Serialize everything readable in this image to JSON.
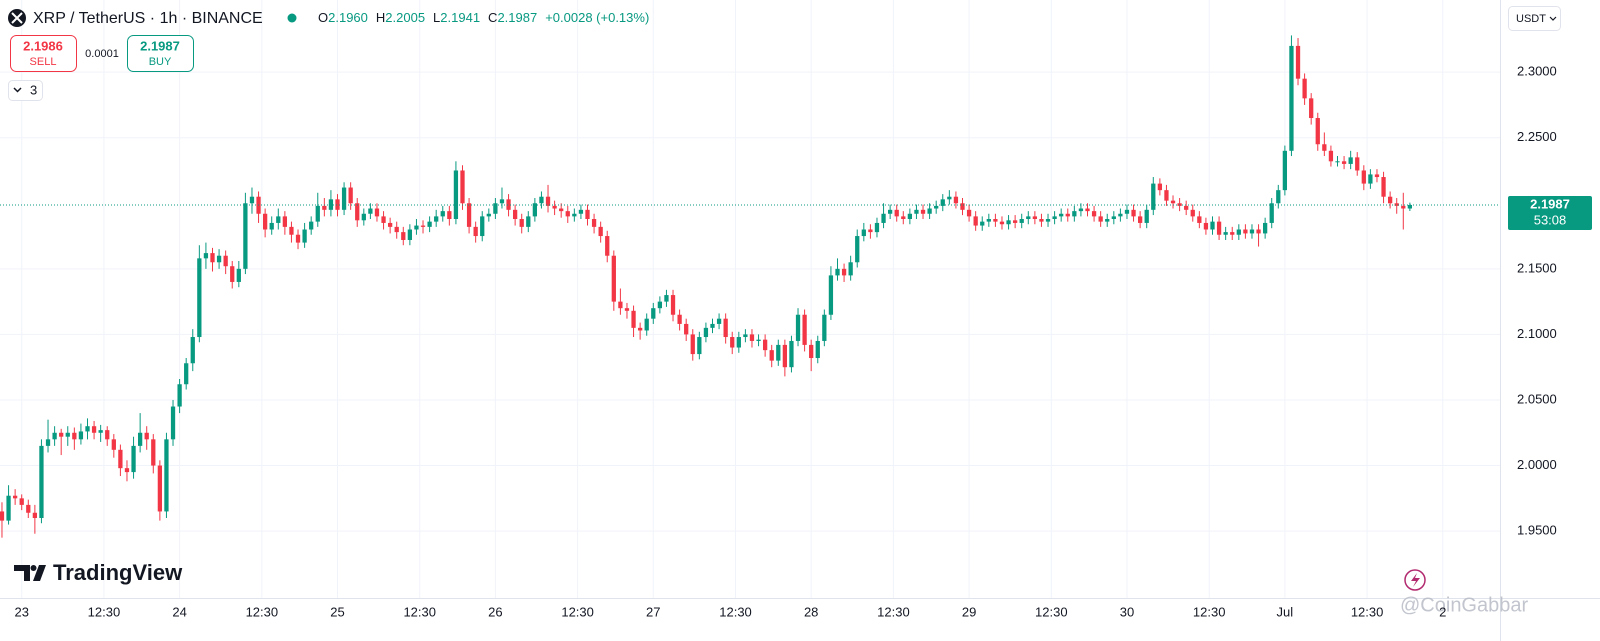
{
  "header": {
    "symbol": "XRP / TetherUS · 1h · BINANCE",
    "ohlc": [
      {
        "label": "O",
        "value": "2.1960"
      },
      {
        "label": "H",
        "value": "2.2005"
      },
      {
        "label": "L",
        "value": "2.1941"
      },
      {
        "label": "C",
        "value": "2.1987"
      }
    ],
    "change": "+0.0028 (+0.13%)"
  },
  "trade": {
    "sell_price": "2.1986",
    "sell": "SELL",
    "spread": "0.0001",
    "buy_price": "2.1987",
    "buy": "BUY"
  },
  "indicators_count": "3",
  "currency": "USDT",
  "watermark": "TradingView",
  "credit": "@CoinGabbar",
  "chart_data": {
    "type": "candlestick",
    "up_color": "#089981",
    "down_color": "#f23645",
    "grid": true,
    "ylim": [
      1.899,
      2.355
    ],
    "yticks": [
      {
        "value": 1.95,
        "label": "1.9500"
      },
      {
        "value": 2.0,
        "label": "2.0000"
      },
      {
        "value": 2.05,
        "label": "2.0500"
      },
      {
        "value": 2.1,
        "label": "2.1000"
      },
      {
        "value": 2.15,
        "label": "2.1500"
      },
      {
        "value": 2.25,
        "label": "2.2500"
      },
      {
        "value": 2.3,
        "label": "2.3000"
      }
    ],
    "xlim": [
      -0.3,
      227.7
    ],
    "xticks": [
      {
        "value": 3,
        "label": "23"
      },
      {
        "value": 15.5,
        "label": "12:30"
      },
      {
        "value": 27,
        "label": "24"
      },
      {
        "value": 39.5,
        "label": "12:30"
      },
      {
        "value": 51,
        "label": "25"
      },
      {
        "value": 63.5,
        "label": "12:30"
      },
      {
        "value": 75,
        "label": "26"
      },
      {
        "value": 87.5,
        "label": "12:30"
      },
      {
        "value": 99,
        "label": "27"
      },
      {
        "value": 111.5,
        "label": "12:30"
      },
      {
        "value": 123,
        "label": "28"
      },
      {
        "value": 135.5,
        "label": "12:30"
      },
      {
        "value": 147,
        "label": "29"
      },
      {
        "value": 159.5,
        "label": "12:30"
      },
      {
        "value": 171,
        "label": "30"
      },
      {
        "value": 183.5,
        "label": "12:30"
      },
      {
        "value": 195,
        "label": "Jul"
      },
      {
        "value": 207.5,
        "label": "12:30"
      },
      {
        "value": 219,
        "label": "2"
      }
    ],
    "last_price": {
      "value": 2.1987,
      "label": "2.1987"
    },
    "countdown": "53:08",
    "candles": [
      [
        1.965,
        1.972,
        1.945,
        1.958
      ],
      [
        1.958,
        1.985,
        1.955,
        1.977
      ],
      [
        1.977,
        1.982,
        1.97,
        1.975
      ],
      [
        1.975,
        1.978,
        1.966,
        1.97
      ],
      [
        1.97,
        1.974,
        1.96,
        1.964
      ],
      [
        1.964,
        1.97,
        1.948,
        1.96
      ],
      [
        1.96,
        2.02,
        1.956,
        2.015
      ],
      [
        2.015,
        2.035,
        2.01,
        2.02
      ],
      [
        2.02,
        2.03,
        2.015,
        2.025
      ],
      [
        2.025,
        2.028,
        2.008,
        2.022
      ],
      [
        2.022,
        2.03,
        2.015,
        2.025
      ],
      [
        2.025,
        2.029,
        2.012,
        2.02
      ],
      [
        2.02,
        2.032,
        2.016,
        2.026
      ],
      [
        2.026,
        2.036,
        2.02,
        2.03
      ],
      [
        2.03,
        2.034,
        2.02,
        2.025
      ],
      [
        2.025,
        2.031,
        2.018,
        2.027
      ],
      [
        2.027,
        2.03,
        2.015,
        2.02
      ],
      [
        2.02,
        2.024,
        2.006,
        2.012
      ],
      [
        2.012,
        2.016,
        1.992,
        1.998
      ],
      [
        1.998,
        2.004,
        1.988,
        1.995
      ],
      [
        1.995,
        2.022,
        1.99,
        2.015
      ],
      [
        2.015,
        2.04,
        2.01,
        2.025
      ],
      [
        2.025,
        2.03,
        2.012,
        2.02
      ],
      [
        2.02,
        2.024,
        1.994,
        2.0
      ],
      [
        2.0,
        2.004,
        1.958,
        1.965
      ],
      [
        1.965,
        2.025,
        1.96,
        2.02
      ],
      [
        2.02,
        2.05,
        2.015,
        2.045
      ],
      [
        2.045,
        2.066,
        2.04,
        2.062
      ],
      [
        2.062,
        2.082,
        2.058,
        2.078
      ],
      [
        2.078,
        2.104,
        2.072,
        2.098
      ],
      [
        2.098,
        2.168,
        2.094,
        2.158
      ],
      [
        2.158,
        2.17,
        2.15,
        2.162
      ],
      [
        2.162,
        2.166,
        2.148,
        2.155
      ],
      [
        2.155,
        2.165,
        2.15,
        2.16
      ],
      [
        2.16,
        2.164,
        2.146,
        2.152
      ],
      [
        2.152,
        2.156,
        2.135,
        2.14
      ],
      [
        2.14,
        2.156,
        2.136,
        2.15
      ],
      [
        2.15,
        2.208,
        2.146,
        2.2
      ],
      [
        2.2,
        2.212,
        2.192,
        2.205
      ],
      [
        2.205,
        2.209,
        2.185,
        2.192
      ],
      [
        2.192,
        2.196,
        2.174,
        2.18
      ],
      [
        2.18,
        2.19,
        2.176,
        2.185
      ],
      [
        2.185,
        2.196,
        2.18,
        2.19
      ],
      [
        2.19,
        2.194,
        2.176,
        2.182
      ],
      [
        2.182,
        2.186,
        2.17,
        2.176
      ],
      [
        2.176,
        2.18,
        2.165,
        2.17
      ],
      [
        2.17,
        2.185,
        2.166,
        2.18
      ],
      [
        2.18,
        2.19,
        2.176,
        2.186
      ],
      [
        2.186,
        2.208,
        2.182,
        2.198
      ],
      [
        2.198,
        2.204,
        2.19,
        2.195
      ],
      [
        2.195,
        2.21,
        2.19,
        2.203
      ],
      [
        2.203,
        2.207,
        2.19,
        2.195
      ],
      [
        2.195,
        2.216,
        2.191,
        2.212
      ],
      [
        2.212,
        2.216,
        2.195,
        2.2
      ],
      [
        2.2,
        2.204,
        2.182,
        2.187
      ],
      [
        2.187,
        2.196,
        2.183,
        2.192
      ],
      [
        2.192,
        2.2,
        2.188,
        2.196
      ],
      [
        2.196,
        2.2,
        2.186,
        2.19
      ],
      [
        2.19,
        2.194,
        2.18,
        2.185
      ],
      [
        2.185,
        2.189,
        2.177,
        2.182
      ],
      [
        2.182,
        2.186,
        2.173,
        2.178
      ],
      [
        2.178,
        2.182,
        2.168,
        2.172
      ],
      [
        2.172,
        2.184,
        2.168,
        2.18
      ],
      [
        2.18,
        2.188,
        2.176,
        2.183
      ],
      [
        2.183,
        2.187,
        2.177,
        2.182
      ],
      [
        2.182,
        2.19,
        2.178,
        2.186
      ],
      [
        2.186,
        2.195,
        2.182,
        2.19
      ],
      [
        2.19,
        2.198,
        2.186,
        2.194
      ],
      [
        2.194,
        2.198,
        2.183,
        2.188
      ],
      [
        2.188,
        2.232,
        2.184,
        2.225
      ],
      [
        2.225,
        2.229,
        2.195,
        2.2
      ],
      [
        2.2,
        2.204,
        2.177,
        2.182
      ],
      [
        2.182,
        2.186,
        2.17,
        2.175
      ],
      [
        2.175,
        2.194,
        2.171,
        2.19
      ],
      [
        2.19,
        2.196,
        2.186,
        2.192
      ],
      [
        2.192,
        2.204,
        2.188,
        2.2
      ],
      [
        2.2,
        2.212,
        2.196,
        2.203
      ],
      [
        2.203,
        2.207,
        2.19,
        2.195
      ],
      [
        2.195,
        2.199,
        2.183,
        2.188
      ],
      [
        2.188,
        2.192,
        2.177,
        2.182
      ],
      [
        2.182,
        2.194,
        2.178,
        2.19
      ],
      [
        2.19,
        2.204,
        2.186,
        2.2
      ],
      [
        2.2,
        2.209,
        2.196,
        2.205
      ],
      [
        2.205,
        2.214,
        2.193,
        2.198
      ],
      [
        2.198,
        2.202,
        2.191,
        2.196
      ],
      [
        2.196,
        2.2,
        2.189,
        2.194
      ],
      [
        2.194,
        2.198,
        2.185,
        2.19
      ],
      [
        2.19,
        2.196,
        2.186,
        2.192
      ],
      [
        2.192,
        2.199,
        2.188,
        2.195
      ],
      [
        2.195,
        2.199,
        2.183,
        2.188
      ],
      [
        2.188,
        2.192,
        2.177,
        2.182
      ],
      [
        2.182,
        2.186,
        2.17,
        2.175
      ],
      [
        2.175,
        2.179,
        2.155,
        2.16
      ],
      [
        2.16,
        2.164,
        2.118,
        2.125
      ],
      [
        2.125,
        2.135,
        2.115,
        2.12
      ],
      [
        2.12,
        2.124,
        2.112,
        2.118
      ],
      [
        2.118,
        2.122,
        2.098,
        2.105
      ],
      [
        2.105,
        2.109,
        2.096,
        2.103
      ],
      [
        2.103,
        2.116,
        2.099,
        2.112
      ],
      [
        2.112,
        2.124,
        2.108,
        2.12
      ],
      [
        2.12,
        2.129,
        2.116,
        2.125
      ],
      [
        2.125,
        2.134,
        2.121,
        2.13
      ],
      [
        2.13,
        2.134,
        2.11,
        2.115
      ],
      [
        2.115,
        2.119,
        2.103,
        2.108
      ],
      [
        2.108,
        2.112,
        2.095,
        2.1
      ],
      [
        2.1,
        2.104,
        2.08,
        2.085
      ],
      [
        2.085,
        2.102,
        2.081,
        2.098
      ],
      [
        2.098,
        2.109,
        2.094,
        2.105
      ],
      [
        2.105,
        2.112,
        2.101,
        2.108
      ],
      [
        2.108,
        2.116,
        2.104,
        2.112
      ],
      [
        2.112,
        2.116,
        2.093,
        2.098
      ],
      [
        2.098,
        2.102,
        2.085,
        2.09
      ],
      [
        2.09,
        2.102,
        2.086,
        2.098
      ],
      [
        2.098,
        2.104,
        2.094,
        2.1
      ],
      [
        2.1,
        2.104,
        2.09,
        2.095
      ],
      [
        2.095,
        2.1,
        2.091,
        2.096
      ],
      [
        2.096,
        2.1,
        2.083,
        2.088
      ],
      [
        2.088,
        2.092,
        2.075,
        2.08
      ],
      [
        2.08,
        2.096,
        2.076,
        2.092
      ],
      [
        2.092,
        2.096,
        2.068,
        2.075
      ],
      [
        2.075,
        2.099,
        2.071,
        2.095
      ],
      [
        2.095,
        2.12,
        2.091,
        2.115
      ],
      [
        2.115,
        2.119,
        2.087,
        2.092
      ],
      [
        2.092,
        2.096,
        2.072,
        2.082
      ],
      [
        2.082,
        2.099,
        2.078,
        2.095
      ],
      [
        2.095,
        2.119,
        2.091,
        2.115
      ],
      [
        2.115,
        2.152,
        2.111,
        2.145
      ],
      [
        2.145,
        2.158,
        2.141,
        2.15
      ],
      [
        2.15,
        2.154,
        2.14,
        2.145
      ],
      [
        2.145,
        2.16,
        2.141,
        2.155
      ],
      [
        2.155,
        2.18,
        2.151,
        2.175
      ],
      [
        2.175,
        2.185,
        2.171,
        2.18
      ],
      [
        2.18,
        2.184,
        2.173,
        2.178
      ],
      [
        2.178,
        2.189,
        2.174,
        2.185
      ],
      [
        2.185,
        2.2,
        2.181,
        2.192
      ],
      [
        2.192,
        2.199,
        2.188,
        2.195
      ],
      [
        2.195,
        2.199,
        2.186,
        2.19
      ],
      [
        2.19,
        2.194,
        2.184,
        2.188
      ],
      [
        2.188,
        2.196,
        2.184,
        2.192
      ],
      [
        2.192,
        2.199,
        2.188,
        2.195
      ],
      [
        2.195,
        2.199,
        2.188,
        2.192
      ],
      [
        2.192,
        2.2,
        2.188,
        2.196
      ],
      [
        2.196,
        2.202,
        2.192,
        2.198
      ],
      [
        2.198,
        2.207,
        2.194,
        2.203
      ],
      [
        2.203,
        2.21,
        2.199,
        2.205
      ],
      [
        2.205,
        2.209,
        2.196,
        2.2
      ],
      [
        2.2,
        2.204,
        2.191,
        2.195
      ],
      [
        2.195,
        2.199,
        2.186,
        2.19
      ],
      [
        2.19,
        2.194,
        2.179,
        2.183
      ],
      [
        2.183,
        2.19,
        2.179,
        2.186
      ],
      [
        2.186,
        2.192,
        2.182,
        2.188
      ],
      [
        2.188,
        2.192,
        2.182,
        2.186
      ],
      [
        2.186,
        2.19,
        2.18,
        2.184
      ],
      [
        2.184,
        2.191,
        2.18,
        2.187
      ],
      [
        2.187,
        2.191,
        2.181,
        2.185
      ],
      [
        2.185,
        2.192,
        2.181,
        2.188
      ],
      [
        2.188,
        2.194,
        2.184,
        2.19
      ],
      [
        2.19,
        2.194,
        2.184,
        2.188
      ],
      [
        2.188,
        2.192,
        2.182,
        2.186
      ],
      [
        2.186,
        2.192,
        2.182,
        2.188
      ],
      [
        2.188,
        2.194,
        2.184,
        2.19
      ],
      [
        2.19,
        2.196,
        2.186,
        2.192
      ],
      [
        2.192,
        2.196,
        2.186,
        2.19
      ],
      [
        2.19,
        2.198,
        2.186,
        2.194
      ],
      [
        2.194,
        2.2,
        2.19,
        2.196
      ],
      [
        2.196,
        2.2,
        2.19,
        2.194
      ],
      [
        2.194,
        2.198,
        2.186,
        2.19
      ],
      [
        2.19,
        2.194,
        2.182,
        2.186
      ],
      [
        2.186,
        2.192,
        2.182,
        2.188
      ],
      [
        2.188,
        2.194,
        2.184,
        2.19
      ],
      [
        2.19,
        2.196,
        2.186,
        2.192
      ],
      [
        2.192,
        2.199,
        2.188,
        2.195
      ],
      [
        2.195,
        2.199,
        2.186,
        2.19
      ],
      [
        2.19,
        2.194,
        2.181,
        2.185
      ],
      [
        2.185,
        2.199,
        2.181,
        2.195
      ],
      [
        2.195,
        2.22,
        2.191,
        2.215
      ],
      [
        2.215,
        2.219,
        2.206,
        2.21
      ],
      [
        2.21,
        2.214,
        2.198,
        2.202
      ],
      [
        2.202,
        2.206,
        2.196,
        2.2
      ],
      [
        2.2,
        2.204,
        2.194,
        2.198
      ],
      [
        2.198,
        2.202,
        2.191,
        2.195
      ],
      [
        2.195,
        2.199,
        2.186,
        2.19
      ],
      [
        2.19,
        2.194,
        2.181,
        2.185
      ],
      [
        2.185,
        2.189,
        2.176,
        2.18
      ],
      [
        2.18,
        2.19,
        2.176,
        2.186
      ],
      [
        2.186,
        2.19,
        2.172,
        2.176
      ],
      [
        2.176,
        2.182,
        2.172,
        2.178
      ],
      [
        2.178,
        2.182,
        2.172,
        2.176
      ],
      [
        2.176,
        2.184,
        2.172,
        2.18
      ],
      [
        2.18,
        2.184,
        2.173,
        2.177
      ],
      [
        2.177,
        2.184,
        2.173,
        2.18
      ],
      [
        2.18,
        2.184,
        2.167,
        2.177
      ],
      [
        2.177,
        2.189,
        2.173,
        2.185
      ],
      [
        2.185,
        2.204,
        2.181,
        2.2
      ],
      [
        2.2,
        2.214,
        2.196,
        2.21
      ],
      [
        2.21,
        2.244,
        2.206,
        2.24
      ],
      [
        2.24,
        2.328,
        2.236,
        2.32
      ],
      [
        2.32,
        2.326,
        2.29,
        2.295
      ],
      [
        2.295,
        2.299,
        2.275,
        2.28
      ],
      [
        2.28,
        2.284,
        2.26,
        2.265
      ],
      [
        2.265,
        2.269,
        2.24,
        2.245
      ],
      [
        2.245,
        2.254,
        2.236,
        2.24
      ],
      [
        2.24,
        2.244,
        2.228,
        2.232
      ],
      [
        2.232,
        2.236,
        2.228,
        2.232
      ],
      [
        2.232,
        2.236,
        2.226,
        2.23
      ],
      [
        2.23,
        2.24,
        2.226,
        2.235
      ],
      [
        2.235,
        2.239,
        2.221,
        2.225
      ],
      [
        2.225,
        2.229,
        2.21,
        2.215
      ],
      [
        2.215,
        2.226,
        2.211,
        2.222
      ],
      [
        2.222,
        2.226,
        2.216,
        2.22
      ],
      [
        2.22,
        2.224,
        2.2,
        2.205
      ],
      [
        2.205,
        2.209,
        2.196,
        2.2
      ],
      [
        2.2,
        2.204,
        2.192,
        2.198
      ],
      [
        2.198,
        2.208,
        2.18,
        2.196
      ],
      [
        2.196,
        2.2005,
        2.1941,
        2.1987
      ]
    ]
  }
}
